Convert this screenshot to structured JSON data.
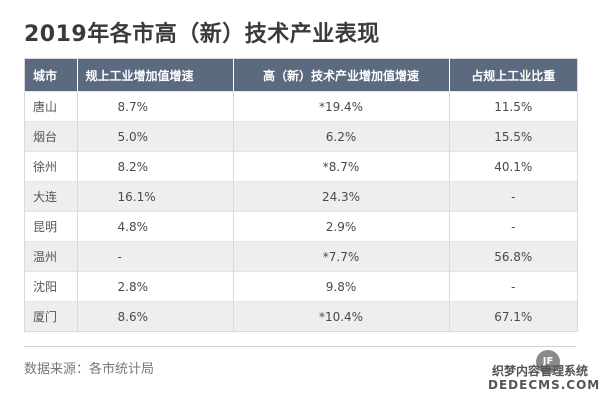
{
  "title": "2019年各市高（新）技术产业表现",
  "table": {
    "headers": [
      "城市",
      "规上工业增加值增速",
      "高（新）技术产业增加值增速",
      "占规上工业比重"
    ],
    "rows": [
      [
        "唐山",
        "8.7%",
        "*19.4%",
        "11.5%"
      ],
      [
        "烟台",
        "5.0%",
        "6.2%",
        "15.5%"
      ],
      [
        "徐州",
        "8.2%",
        "*8.7%",
        "40.1%"
      ],
      [
        "大连",
        "16.1%",
        "24.3%",
        "-"
      ],
      [
        "昆明",
        "4.8%",
        "2.9%",
        "-"
      ],
      [
        "温州",
        "-",
        "*7.7%",
        "56.8%"
      ],
      [
        "沈阳",
        "2.8%",
        "9.8%",
        "-"
      ],
      [
        "厦门",
        "8.6%",
        "*10.4%",
        "67.1%"
      ]
    ]
  },
  "source": "数据来源：各市统计局",
  "watermark": {
    "logo": "JF",
    "line1": "织梦内容管理系统",
    "line2": "DEDECMS.COM"
  }
}
